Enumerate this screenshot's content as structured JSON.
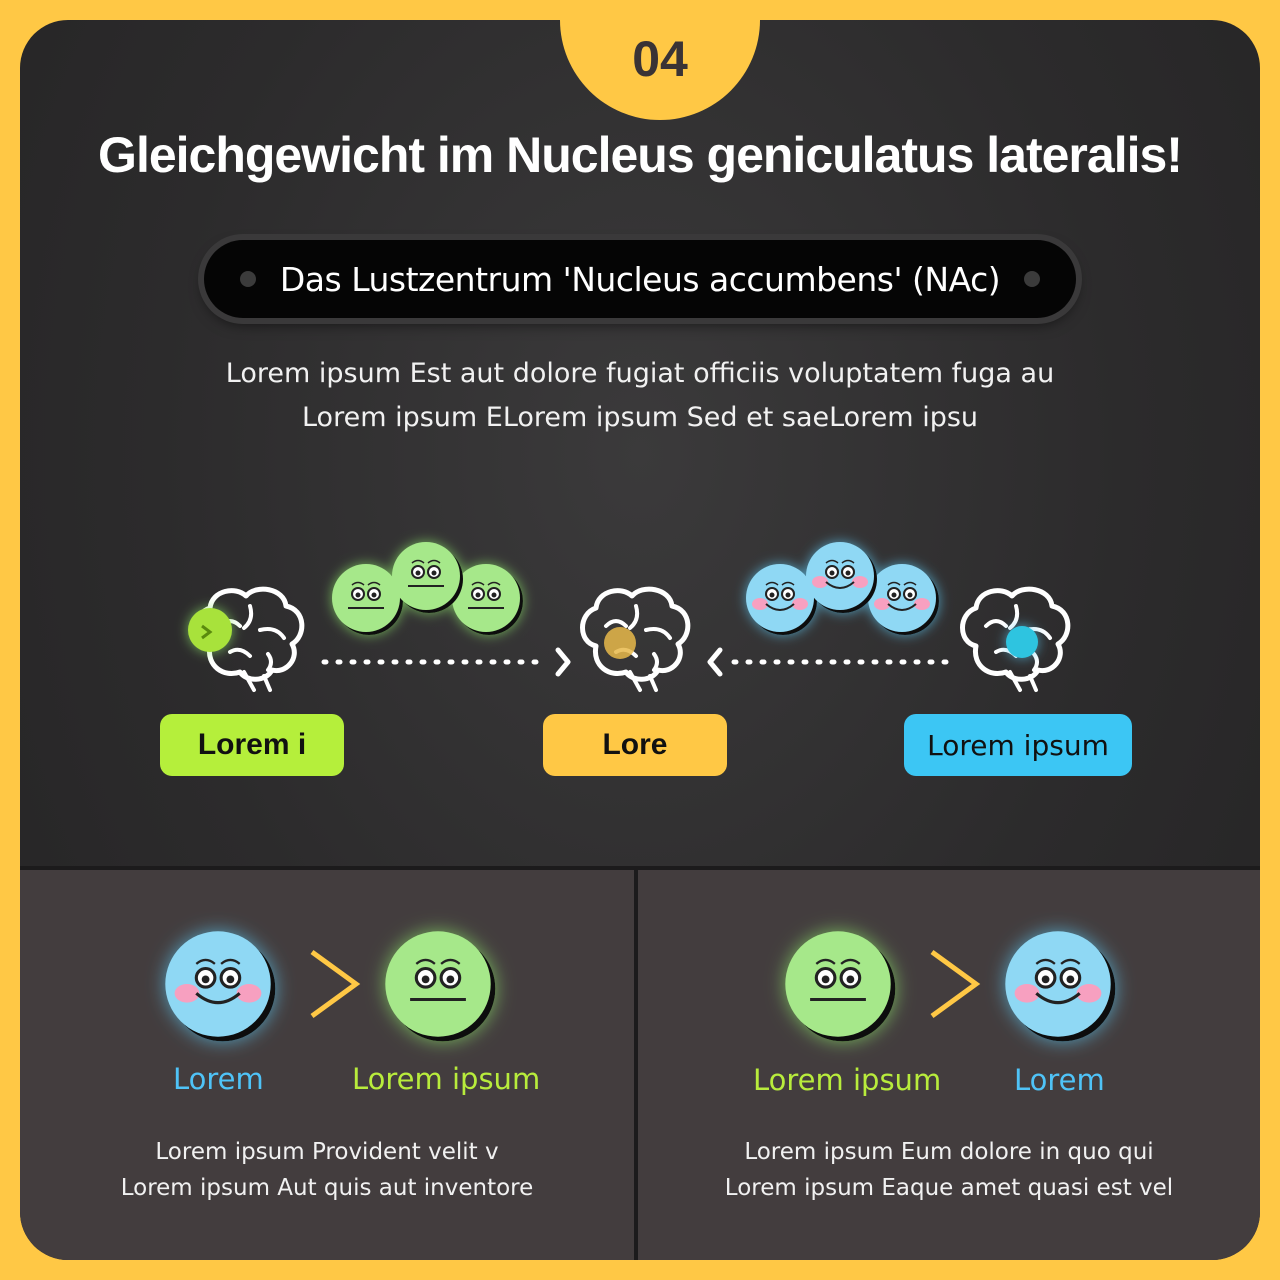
{
  "badge": {
    "number": "04"
  },
  "title": "Gleichgewicht im Nucleus geniculatus lateralis!",
  "pill": {
    "text": "Das Lustzentrum 'Nucleus accumbens' (NAc)"
  },
  "description": [
    "Lorem ipsum Est aut dolore fugiat officiis voluptatem fuga au",
    "Lorem ipsum ELorem ipsum Sed et saeLorem ipsu"
  ],
  "diagram": {
    "labels": {
      "left": "Lorem i",
      "center": "Lore",
      "right": "Lorem ipsum"
    }
  },
  "bottom_left": {
    "label_a": "Lorem",
    "label_b": "Lorem ipsum",
    "text": [
      "Lorem ipsum Provident velit v",
      "Lorem ipsum Aut quis aut inventore"
    ]
  },
  "bottom_right": {
    "label_a": "Lorem ipsum",
    "label_b": "Lorem",
    "text": [
      "Lorem ipsum Eum dolore in quo qui",
      "Lorem ipsum Eaque amet quasi est vel"
    ]
  },
  "colors": {
    "background": "#ffc845",
    "green": "#b5ef3b",
    "yellow": "#ffc845",
    "blue": "#3cc6f4",
    "face_green": "#a6e88a",
    "face_blue": "#8fd8f4"
  },
  "icons": [
    "brain-icon",
    "neutral-face-icon",
    "happy-face-icon",
    "arrow-right-icon",
    "greater-than-icon"
  ]
}
